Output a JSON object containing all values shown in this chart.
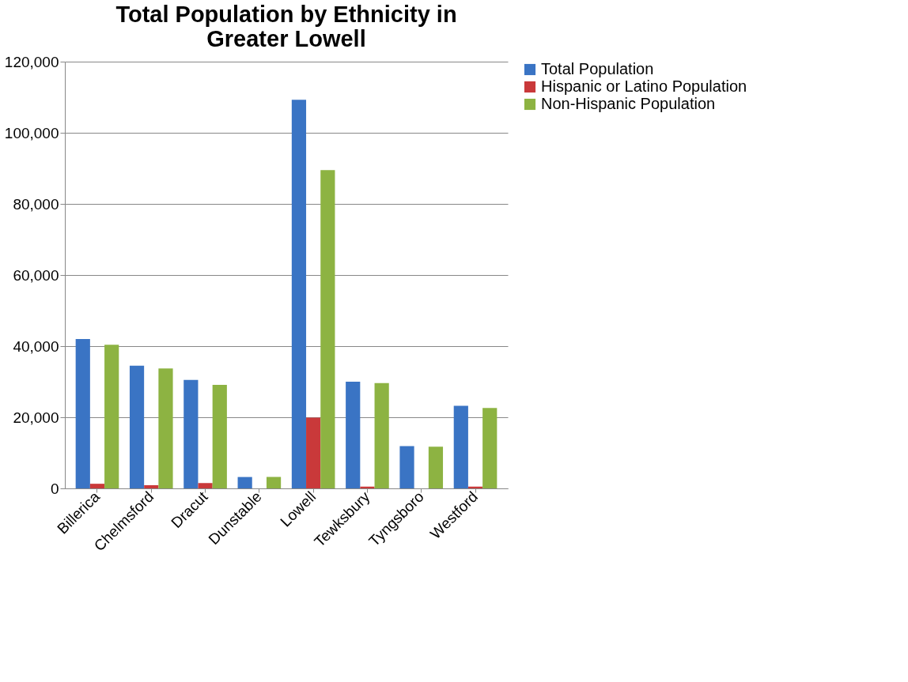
{
  "chart_data": {
    "type": "bar",
    "title": "Total Population by Ethnicity in Greater Lowell",
    "categories": [
      "Billerica",
      "Chelmsford",
      "Dracut",
      "Dunstable",
      "Lowell",
      "Tewksbury",
      "Tyngsboro",
      "Westford"
    ],
    "series": [
      {
        "name": "Total Population",
        "color": "#3a74c4",
        "values": [
          42000,
          34500,
          30500,
          3200,
          109300,
          30000,
          11900,
          23200
        ]
      },
      {
        "name": "Hispanic or Latino Population",
        "color": "#c9393a",
        "values": [
          1300,
          900,
          1500,
          null,
          19900,
          500,
          null,
          500
        ]
      },
      {
        "name": "Non-Hispanic Population",
        "color": "#8db342",
        "values": [
          40400,
          33700,
          29100,
          3200,
          89500,
          29600,
          11700,
          22600
        ]
      }
    ],
    "ylim": [
      0,
      120000
    ],
    "yticks": [
      {
        "value": 0,
        "label": "0"
      },
      {
        "value": 20000,
        "label": "20,000"
      },
      {
        "value": 40000,
        "label": "40,000"
      },
      {
        "value": 60000,
        "label": "60,000"
      },
      {
        "value": 80000,
        "label": "80,000"
      },
      {
        "value": 100000,
        "label": "100,000"
      },
      {
        "value": 120000,
        "label": "120,000"
      }
    ],
    "grid": "y",
    "legend": "right"
  }
}
